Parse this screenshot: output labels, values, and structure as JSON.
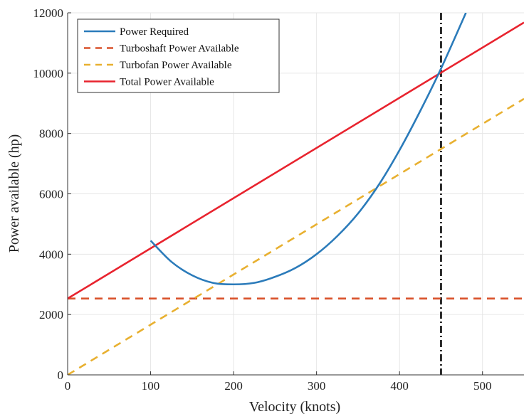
{
  "chart_data": {
    "type": "line",
    "title": "",
    "xlabel": "Velocity (knots)",
    "ylabel": "Power available (hp)",
    "xlim": [
      0,
      550
    ],
    "ylim": [
      0,
      12000
    ],
    "xticks": [
      0,
      100,
      200,
      300,
      400,
      500
    ],
    "yticks": [
      0,
      2000,
      4000,
      6000,
      8000,
      10000,
      12000
    ],
    "grid": true,
    "legend_position": "top-left",
    "series": [
      {
        "name": "Power Required",
        "style": "solid",
        "color": "#2b7bba",
        "x": [
          100,
          125,
          150,
          175,
          200,
          225,
          250,
          275,
          300,
          325,
          350,
          375,
          400,
          425,
          450,
          480
        ],
        "y": [
          4450,
          3750,
          3300,
          3050,
          3000,
          3050,
          3250,
          3550,
          4000,
          4600,
          5350,
          6300,
          7450,
          8750,
          10150,
          12000
        ]
      },
      {
        "name": "Turboshaft Power Available",
        "style": "dashed",
        "color": "#d9522b",
        "x": [
          0,
          550
        ],
        "y": [
          2530,
          2530
        ]
      },
      {
        "name": "Turbofan Power Available",
        "style": "dashed",
        "color": "#e8b030",
        "x": [
          0,
          550
        ],
        "y": [
          0,
          9150
        ]
      },
      {
        "name": "Total Power Available",
        "style": "solid",
        "color": "#e8232e",
        "x": [
          0,
          550
        ],
        "y": [
          2530,
          11680
        ]
      }
    ],
    "reference_lines": [
      {
        "axis": "x",
        "value": 450,
        "style": "dash-dot",
        "color": "#000000"
      }
    ]
  }
}
